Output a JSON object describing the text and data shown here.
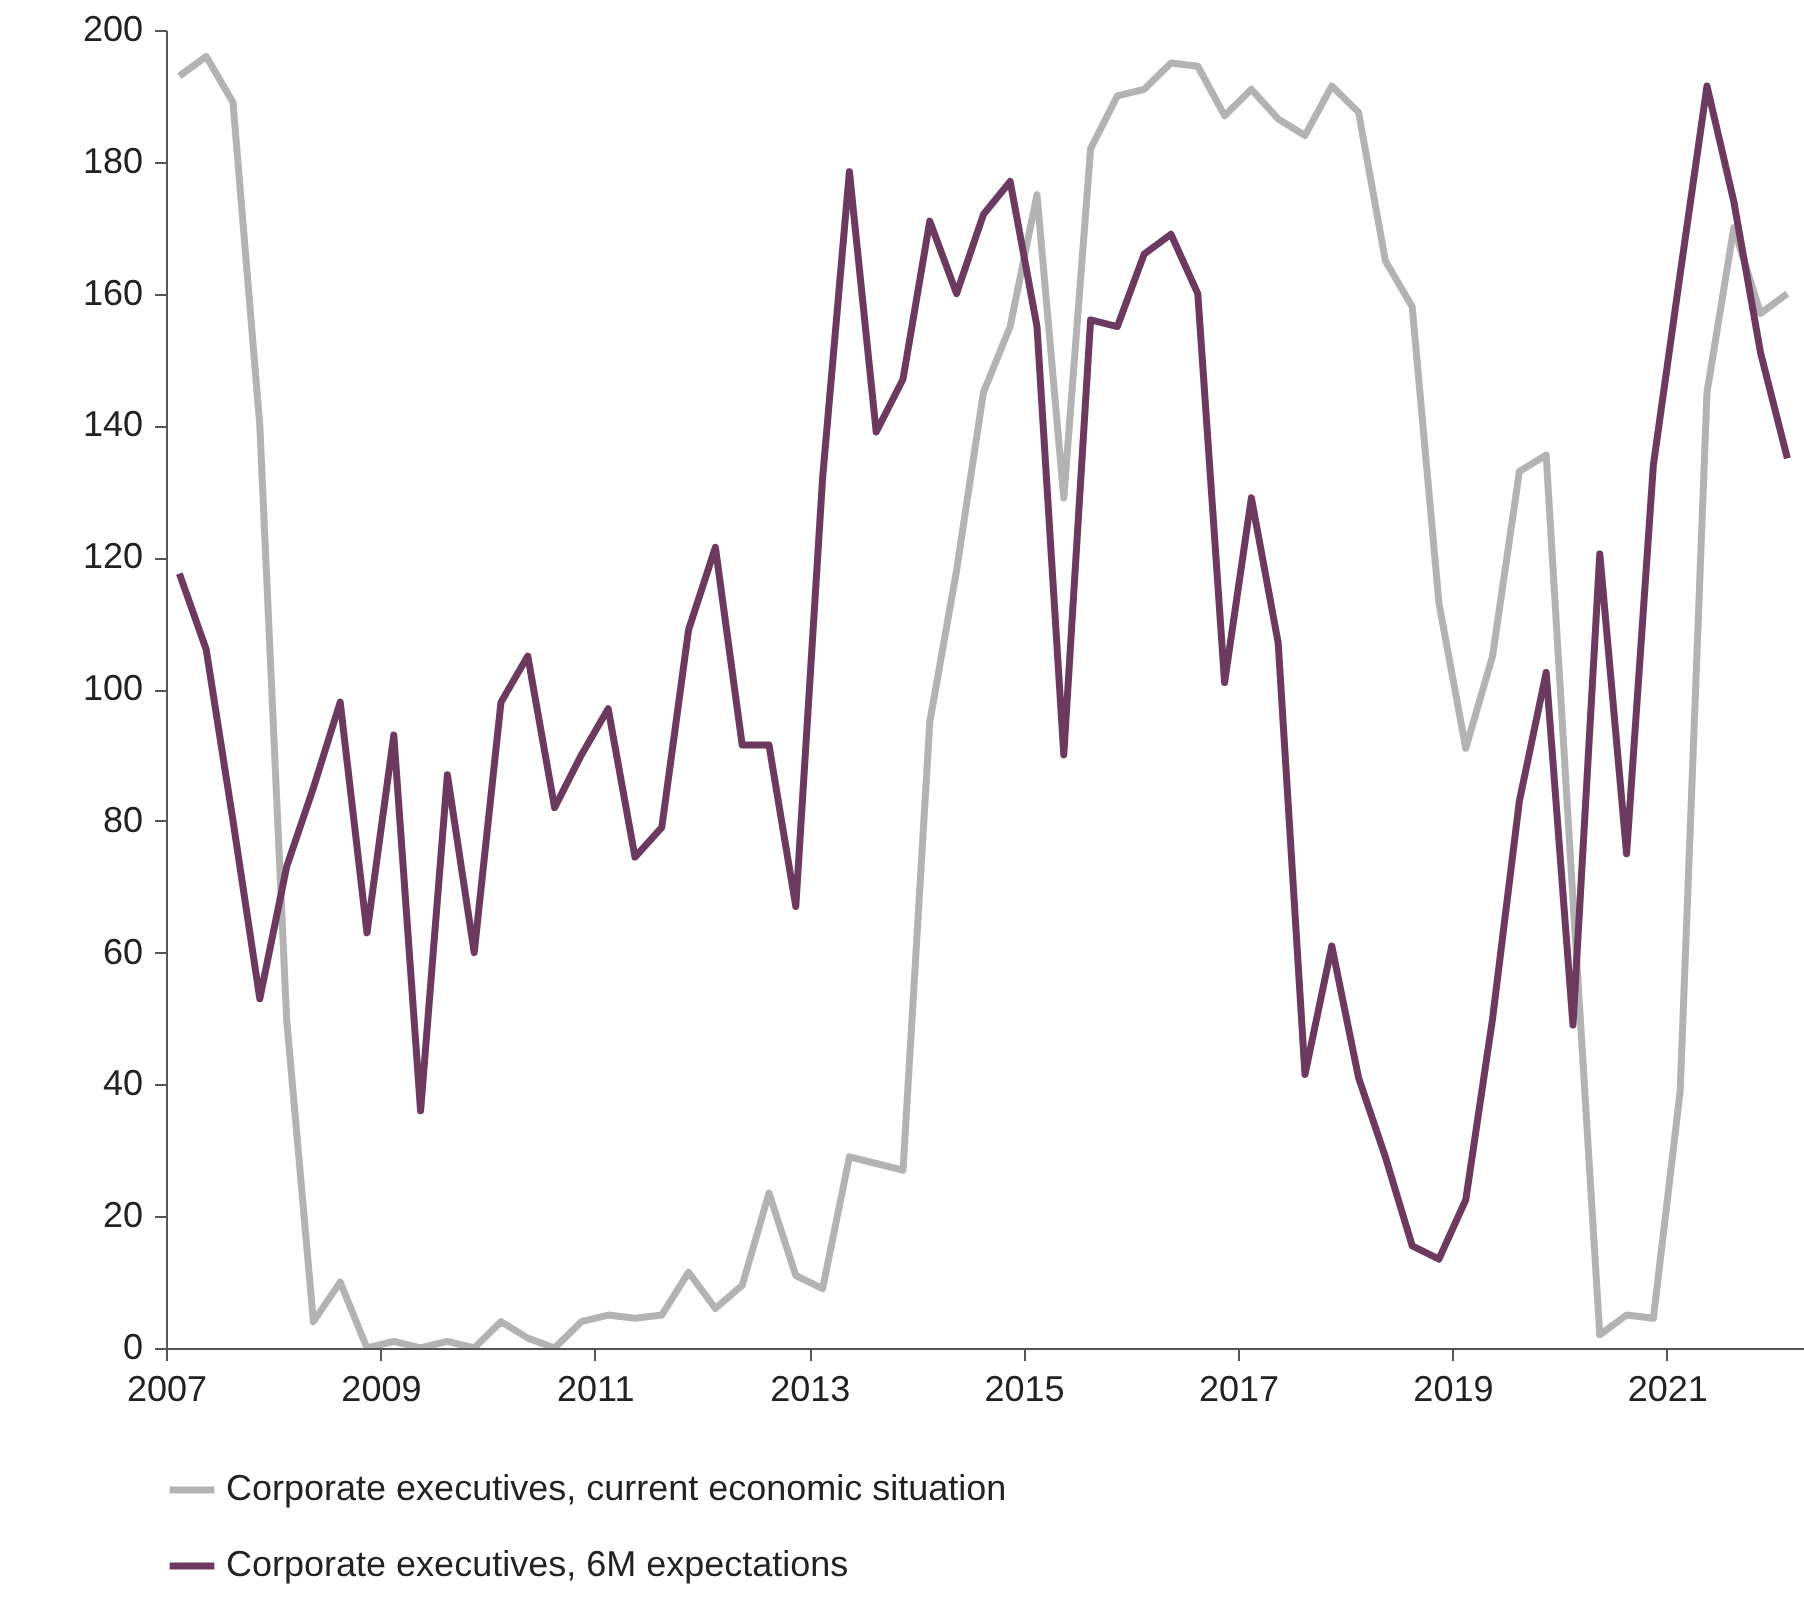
{
  "chart_data": {
    "type": "line",
    "x": [
      2007.125,
      2007.375,
      2007.625,
      2007.875,
      2008.125,
      2008.375,
      2008.625,
      2008.875,
      2009.125,
      2009.375,
      2009.625,
      2009.875,
      2010.125,
      2010.375,
      2010.625,
      2010.875,
      2011.125,
      2011.375,
      2011.625,
      2011.875,
      2012.125,
      2012.375,
      2012.625,
      2012.875,
      2013.125,
      2013.375,
      2013.625,
      2013.875,
      2014.125,
      2014.375,
      2014.625,
      2014.875,
      2015.125,
      2015.375,
      2015.625,
      2015.875,
      2016.125,
      2016.375,
      2016.625,
      2016.875,
      2017.125,
      2017.375,
      2017.625,
      2017.875,
      2018.125,
      2018.375,
      2018.625,
      2018.875,
      2019.125,
      2019.375,
      2019.625,
      2019.875,
      2020.125,
      2020.375,
      2020.625,
      2020.875,
      2021.125,
      2021.375,
      2021.625,
      2021.875,
      2022.125
    ],
    "series": [
      {
        "name": "Corporate executives, current economic situation",
        "color": "#b3b3b3",
        "values": [
          193,
          196,
          189,
          140,
          50,
          4,
          10,
          0,
          1,
          0,
          1,
          0,
          4,
          1.5,
          0,
          4,
          5,
          4.5,
          5,
          11.5,
          6,
          9.5,
          23.5,
          11,
          9,
          29,
          28,
          27,
          95,
          118,
          145,
          155,
          175,
          129,
          182,
          190,
          191,
          195,
          194.5,
          187,
          191,
          186.5,
          184,
          191.5,
          187.5,
          165,
          158,
          113,
          91,
          105,
          133,
          135.5,
          68,
          2,
          5,
          4.5,
          39,
          145,
          170,
          157,
          160
        ]
      },
      {
        "name": "Corporate executives, 6M expectations",
        "color": "#6b3a5e",
        "values": [
          117.5,
          106,
          80,
          53,
          73,
          85,
          98,
          63,
          93,
          36,
          87,
          60,
          98,
          105,
          82,
          90,
          97,
          74.5,
          79,
          109,
          121.5,
          91.5,
          91.5,
          67,
          132,
          178.5,
          139,
          147,
          171,
          160,
          172,
          177,
          155,
          90,
          156,
          155,
          166,
          169,
          160,
          101,
          129,
          107,
          41.5,
          61,
          41,
          29,
          15.5,
          13.5,
          22.5,
          50,
          83,
          102.5,
          49,
          120.5,
          75,
          134,
          163,
          191.5,
          174,
          151,
          135
        ]
      }
    ],
    "xlim": [
      2007,
      2022.28
    ],
    "xticks": [
      2007,
      2009,
      2011,
      2013,
      2015,
      2017,
      2019,
      2021
    ],
    "ylim": [
      0,
      200
    ],
    "yticks": [
      0,
      20,
      40,
      60,
      80,
      100,
      120,
      140,
      160,
      180,
      200
    ],
    "grid": false,
    "legend": "bottom"
  }
}
